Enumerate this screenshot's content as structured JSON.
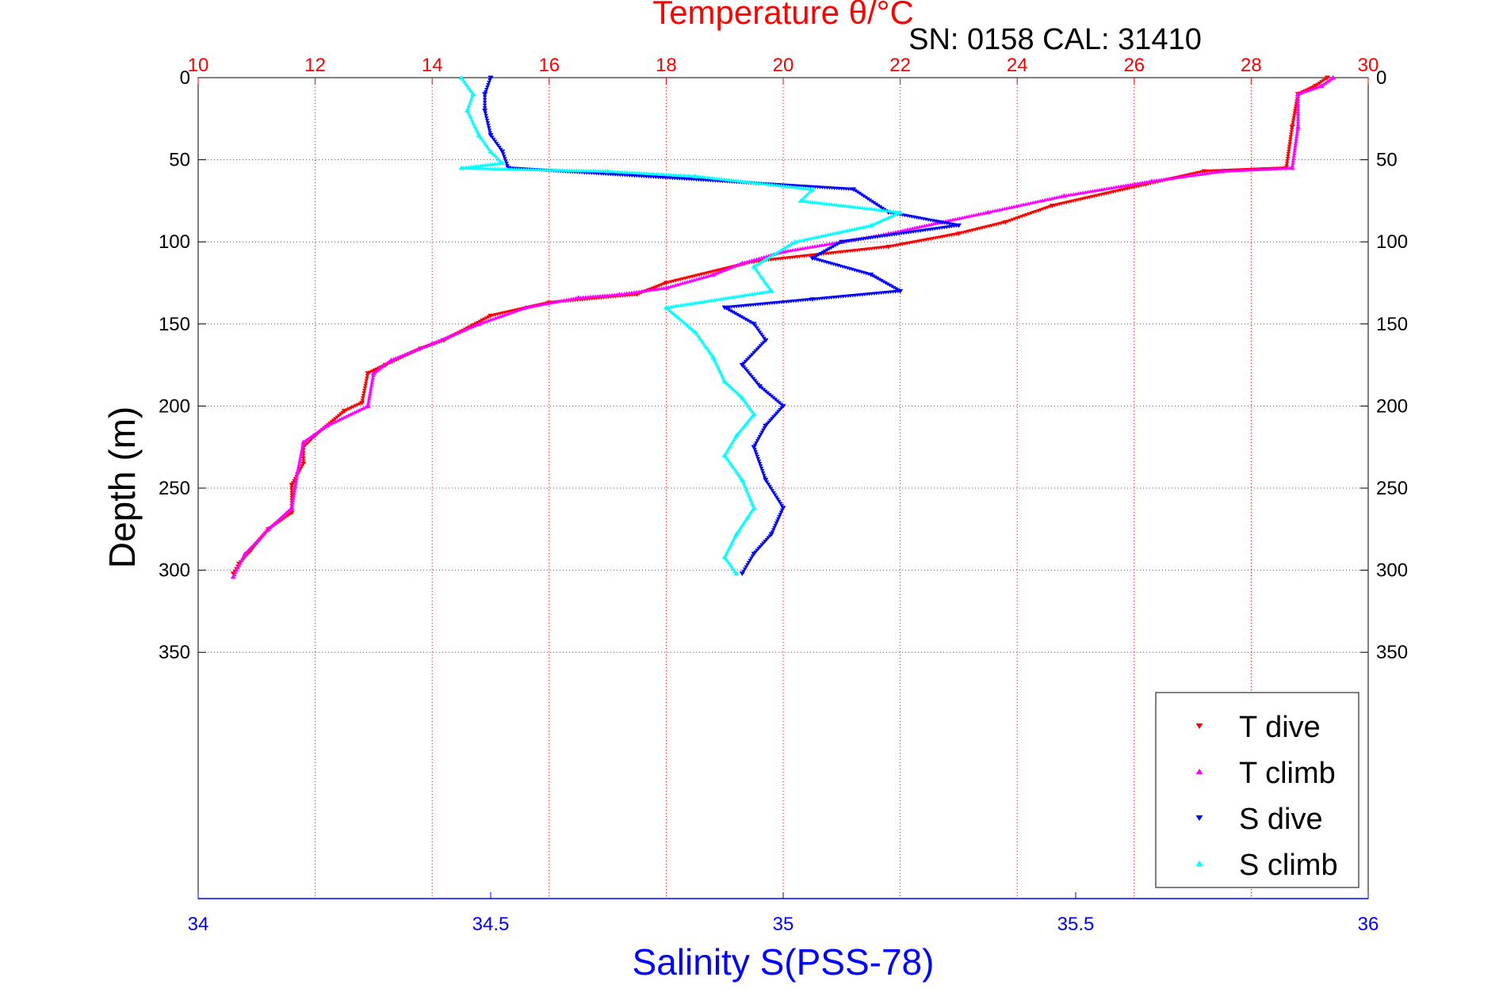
{
  "chart_data": {
    "type": "scatter",
    "title": "Temperature θ/°C",
    "subtitle": "SN: 0158  CAL: 31410",
    "ylabel": "Depth (m)",
    "xlabel": "Salinity S(PSS-78)",
    "top_axis": {
      "label": "Temperature θ/°C",
      "range": [
        10,
        30
      ],
      "ticks": [
        "10",
        "12",
        "14",
        "16",
        "18",
        "20",
        "22",
        "24",
        "26",
        "28",
        "30"
      ],
      "color": "#ff0000"
    },
    "bottom_axis": {
      "label": "Salinity S(PSS-78)",
      "range": [
        34,
        36
      ],
      "ticks": [
        "34",
        "34.5",
        "35",
        "35.5",
        "36"
      ],
      "color": "#0000ff"
    },
    "y_axis": {
      "range": [
        0,
        500
      ],
      "reversed": true,
      "ticks": [
        "0",
        "50",
        "100",
        "150",
        "200",
        "250",
        "300",
        "350"
      ]
    },
    "grid": true,
    "legend_position": "bottom-right",
    "series": [
      {
        "name": "T dive",
        "axis": "temperature",
        "marker": "triangle-down",
        "color": "#ff0000",
        "points": [
          [
            29.3,
            0
          ],
          [
            29.1,
            5
          ],
          [
            28.8,
            10
          ],
          [
            28.7,
            30
          ],
          [
            28.6,
            55
          ],
          [
            27.2,
            57
          ],
          [
            26.2,
            65
          ],
          [
            24.6,
            78
          ],
          [
            23.8,
            88
          ],
          [
            23.0,
            95
          ],
          [
            21.8,
            103
          ],
          [
            19.5,
            112
          ],
          [
            18.0,
            125
          ],
          [
            17.5,
            132
          ],
          [
            16.0,
            137
          ],
          [
            15.0,
            145
          ],
          [
            14.2,
            160
          ],
          [
            13.8,
            165
          ],
          [
            13.2,
            175
          ],
          [
            12.9,
            180
          ],
          [
            12.8,
            198
          ],
          [
            12.5,
            203
          ],
          [
            12.0,
            218
          ],
          [
            11.8,
            225
          ],
          [
            11.8,
            235
          ],
          [
            11.6,
            248
          ],
          [
            11.6,
            265
          ],
          [
            11.2,
            275
          ],
          [
            10.9,
            288
          ],
          [
            10.7,
            296
          ],
          [
            10.6,
            302
          ]
        ]
      },
      {
        "name": "T climb",
        "axis": "temperature",
        "marker": "triangle-up",
        "color": "#ff00ff",
        "points": [
          [
            29.4,
            0
          ],
          [
            29.2,
            5
          ],
          [
            28.8,
            10
          ],
          [
            28.8,
            30
          ],
          [
            28.7,
            55
          ],
          [
            27.5,
            57
          ],
          [
            26.3,
            63
          ],
          [
            24.8,
            72
          ],
          [
            23.5,
            82
          ],
          [
            22.7,
            88
          ],
          [
            21.8,
            95
          ],
          [
            21.0,
            100
          ],
          [
            20.0,
            106
          ],
          [
            19.3,
            113
          ],
          [
            18.8,
            120
          ],
          [
            18.0,
            128
          ],
          [
            17.2,
            132
          ],
          [
            16.5,
            134
          ],
          [
            15.6,
            140
          ],
          [
            14.8,
            150
          ],
          [
            14.0,
            162
          ],
          [
            13.3,
            172
          ],
          [
            13.0,
            180
          ],
          [
            12.9,
            200
          ],
          [
            12.2,
            212
          ],
          [
            11.8,
            222
          ],
          [
            11.7,
            240
          ],
          [
            11.6,
            262
          ],
          [
            11.2,
            275
          ],
          [
            10.8,
            290
          ],
          [
            10.6,
            304
          ]
        ]
      },
      {
        "name": "S dive",
        "axis": "salinity",
        "marker": "triangle-down",
        "color": "#0000ff",
        "points": [
          [
            34.5,
            0
          ],
          [
            34.49,
            10
          ],
          [
            34.49,
            20
          ],
          [
            34.5,
            35
          ],
          [
            34.52,
            45
          ],
          [
            34.53,
            55
          ],
          [
            35.12,
            68
          ],
          [
            35.18,
            82
          ],
          [
            35.3,
            90
          ],
          [
            35.1,
            100
          ],
          [
            35.05,
            110
          ],
          [
            35.15,
            120
          ],
          [
            35.2,
            130
          ],
          [
            35.05,
            135
          ],
          [
            34.9,
            140
          ],
          [
            34.95,
            150
          ],
          [
            34.97,
            160
          ],
          [
            34.93,
            175
          ],
          [
            34.96,
            188
          ],
          [
            35.0,
            200
          ],
          [
            34.97,
            212
          ],
          [
            34.95,
            225
          ],
          [
            34.97,
            245
          ],
          [
            35.0,
            262
          ],
          [
            34.98,
            278
          ],
          [
            34.95,
            290
          ],
          [
            34.93,
            302
          ]
        ]
      },
      {
        "name": "S climb",
        "axis": "salinity",
        "marker": "triangle-up",
        "color": "#00ffff",
        "points": [
          [
            34.45,
            0
          ],
          [
            34.47,
            10
          ],
          [
            34.46,
            20
          ],
          [
            34.48,
            35
          ],
          [
            34.5,
            45
          ],
          [
            34.52,
            52
          ],
          [
            34.45,
            55
          ],
          [
            34.7,
            57
          ],
          [
            34.85,
            60
          ],
          [
            35.05,
            68
          ],
          [
            35.03,
            75
          ],
          [
            35.2,
            82
          ],
          [
            35.15,
            90
          ],
          [
            35.02,
            100
          ],
          [
            34.95,
            115
          ],
          [
            34.98,
            130
          ],
          [
            34.8,
            140
          ],
          [
            34.85,
            155
          ],
          [
            34.88,
            170
          ],
          [
            34.9,
            185
          ],
          [
            34.93,
            195
          ],
          [
            34.95,
            205
          ],
          [
            34.92,
            218
          ],
          [
            34.9,
            230
          ],
          [
            34.93,
            245
          ],
          [
            34.95,
            262
          ],
          [
            34.92,
            278
          ],
          [
            34.9,
            292
          ],
          [
            34.92,
            302
          ]
        ]
      }
    ]
  }
}
